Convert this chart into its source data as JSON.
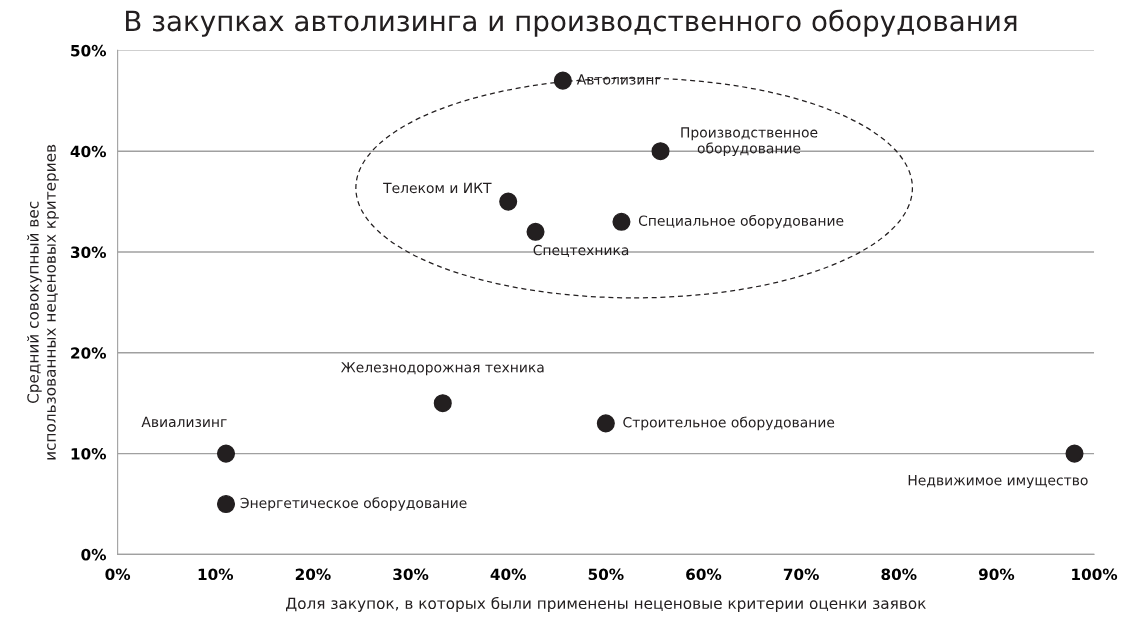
{
  "chart_data": {
    "type": "scatter",
    "title": "В закупках автолизинга и производственного оборудования",
    "xlabel": "Доля закупок, в которых были применены неценовые критерии оценки заявок",
    "ylabel": "Средний совокупный вес\nиспользованных неценовых критериев",
    "x": [
      45.6,
      55.6,
      40,
      42.8,
      51.6,
      33.3,
      50,
      11.1,
      98,
      11.1
    ],
    "values": [
      47,
      40,
      35,
      32,
      33,
      15,
      13,
      10,
      10,
      5
    ],
    "color": "#231f20",
    "marker": "circle",
    "xlim": [
      0,
      100
    ],
    "xticks": [
      {
        "value": 0,
        "label": "0%"
      },
      {
        "value": 10,
        "label": "10%"
      },
      {
        "value": 20,
        "label": "20%"
      },
      {
        "value": 30,
        "label": "30%"
      },
      {
        "value": 40,
        "label": "40%"
      },
      {
        "value": 50,
        "label": "50%"
      },
      {
        "value": 60,
        "label": "60%"
      },
      {
        "value": 70,
        "label": "70%"
      },
      {
        "value": 80,
        "label": "80%"
      },
      {
        "value": 90,
        "label": "90%"
      },
      {
        "value": 100,
        "label": "100%"
      }
    ],
    "ylim": [
      0,
      50
    ],
    "yticks": [
      {
        "value": 0,
        "label": "0%"
      },
      {
        "value": 10,
        "label": "10%"
      },
      {
        "value": 20,
        "label": "20%"
      },
      {
        "value": 30,
        "label": "30%"
      },
      {
        "value": 40,
        "label": "40%"
      },
      {
        "value": 50,
        "label": "50%"
      }
    ],
    "grid": "y",
    "annotations": [
      {
        "text": "Автолизинг",
        "x": 45.6,
        "y": 47
      },
      {
        "text": "Производственное\nоборудование",
        "x": 55.6,
        "y": 40
      },
      {
        "text": "Телеком и ИКТ",
        "x": 40,
        "y": 35
      },
      {
        "text": "Спецтехника",
        "x": 42.8,
        "y": 32
      },
      {
        "text": "Специальное оборудование",
        "x": 51.6,
        "y": 33
      },
      {
        "text": "Железнодорожная техника",
        "x": 33.3,
        "y": 15
      },
      {
        "text": "Строительное оборудование",
        "x": 50,
        "y": 13
      },
      {
        "text": "Авиализинг",
        "x": 11.1,
        "y": 10
      },
      {
        "text": "Недвижимое имущество",
        "x": 98,
        "y": 10
      },
      {
        "text": "Энергетическое оборудование",
        "x": 11.1,
        "y": 5
      }
    ]
  }
}
